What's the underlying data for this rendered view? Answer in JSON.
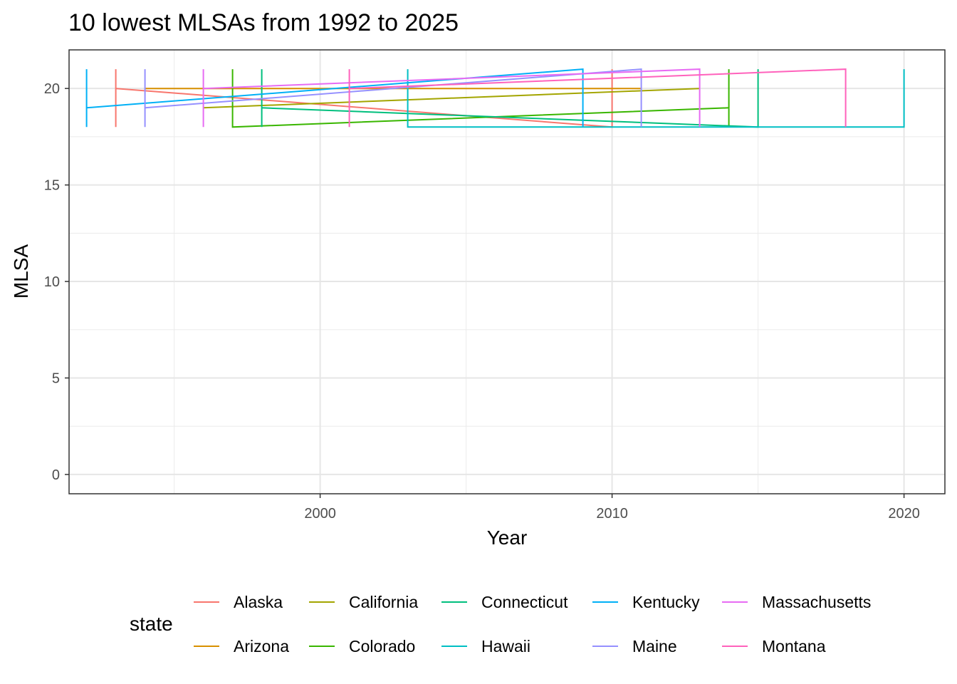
{
  "chart_data": {
    "type": "line",
    "title": "10 lowest MLSAs from 1992 to 2025",
    "xlabel": "Year",
    "ylabel": "MLSA",
    "xlim": [
      1991.4,
      2021.4
    ],
    "ylim": [
      -1,
      22
    ],
    "xticks": [
      2000,
      2010,
      2020
    ],
    "yticks": [
      0,
      5,
      10,
      15,
      20
    ],
    "grid": true,
    "legend": {
      "title": "state",
      "position": "bottom"
    },
    "series": [
      {
        "name": "Alaska",
        "color": "#F8766D",
        "x": [
          1993,
          1993,
          1993,
          2010,
          2010,
          2010
        ],
        "y": [
          18,
          21,
          20,
          18,
          18,
          21
        ]
      },
      {
        "name": "Arizona",
        "color": "#D89000",
        "x": [
          1994,
          2011
        ],
        "y": [
          20,
          20
        ]
      },
      {
        "name": "California",
        "color": "#A3A500",
        "x": [
          1996,
          2013
        ],
        "y": [
          19,
          20
        ]
      },
      {
        "name": "Colorado",
        "color": "#39B600",
        "x": [
          1997,
          1997,
          1997,
          2014,
          2014,
          2014
        ],
        "y": [
          21,
          21,
          18,
          19,
          21,
          18
        ]
      },
      {
        "name": "Connecticut",
        "color": "#00BF7D",
        "x": [
          1998,
          1998,
          1998,
          2015,
          2015,
          2015
        ],
        "y": [
          18,
          21,
          19,
          18,
          18,
          21
        ]
      },
      {
        "name": "Hawaii",
        "color": "#00BFC4",
        "x": [
          2003,
          2003,
          2003,
          2020,
          2020,
          2020
        ],
        "y": [
          21,
          21,
          18,
          18,
          18,
          21
        ]
      },
      {
        "name": "Kentucky",
        "color": "#00B0F6",
        "x": [
          1992,
          1992,
          1992,
          2009,
          2009,
          2009
        ],
        "y": [
          18,
          21,
          19,
          21,
          21,
          18
        ]
      },
      {
        "name": "Maine",
        "color": "#9590FF",
        "x": [
          1994,
          1994,
          1994,
          2011,
          2011,
          2011
        ],
        "y": [
          18,
          21,
          19,
          21,
          21,
          18
        ]
      },
      {
        "name": "Massachusetts",
        "color": "#E76BF3",
        "x": [
          1996,
          1996,
          1996,
          2013,
          2013,
          2013
        ],
        "y": [
          18,
          21,
          20,
          21,
          21,
          18
        ]
      },
      {
        "name": "Montana",
        "color": "#FF62BC",
        "x": [
          2001,
          2001,
          2001,
          2018,
          2018,
          2018
        ],
        "y": [
          18,
          21,
          20,
          21,
          21,
          18
        ]
      }
    ]
  }
}
